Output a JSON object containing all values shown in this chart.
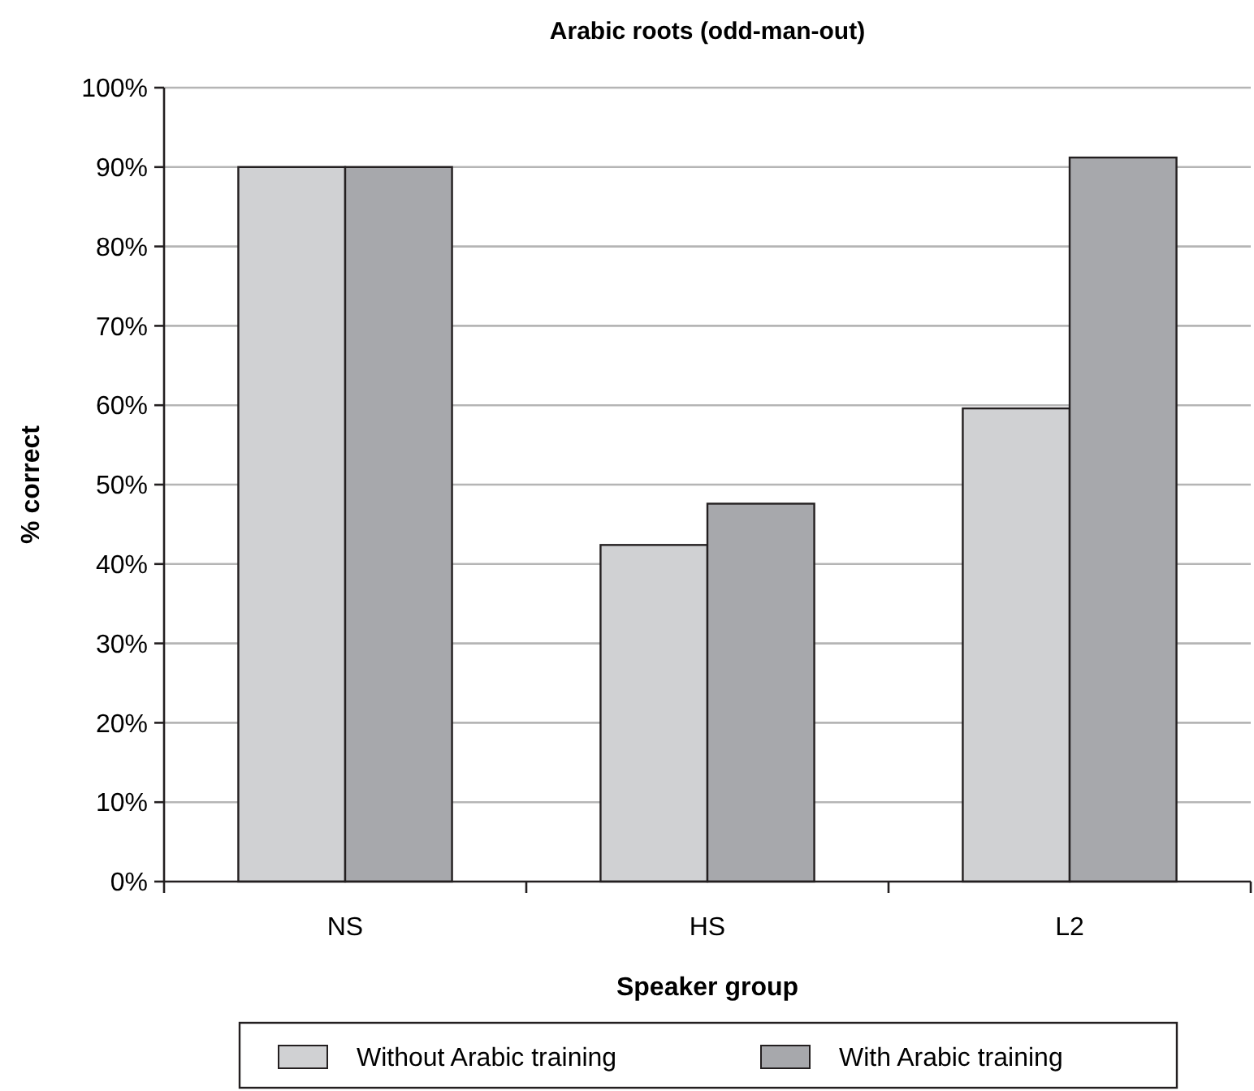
{
  "chart_data": {
    "type": "bar",
    "title": "Arabic roots (odd-man-out)",
    "xlabel": "Speaker group",
    "ylabel": "% correct",
    "categories": [
      "NS",
      "HS",
      "L2"
    ],
    "series": [
      {
        "name": "Without Arabic training",
        "color": "#d0d1d3",
        "values": [
          90,
          42.4,
          59.6
        ]
      },
      {
        "name": "With Arabic training",
        "color": "#a7a8ac",
        "values": [
          90,
          47.6,
          91.2
        ]
      }
    ],
    "ylim": [
      0,
      100
    ],
    "yticks": [
      {
        "value": 0,
        "label": "0%"
      },
      {
        "value": 10,
        "label": "10%"
      },
      {
        "value": 20,
        "label": "20%"
      },
      {
        "value": 30,
        "label": "30%"
      },
      {
        "value": 40,
        "label": "40%"
      },
      {
        "value": 50,
        "label": "50%"
      },
      {
        "value": 60,
        "label": "60%"
      },
      {
        "value": 70,
        "label": "70%"
      },
      {
        "value": 80,
        "label": "80%"
      },
      {
        "value": 90,
        "label": "90%"
      },
      {
        "value": 100,
        "label": "100%"
      }
    ],
    "grid": "y",
    "legend": "bottom"
  }
}
